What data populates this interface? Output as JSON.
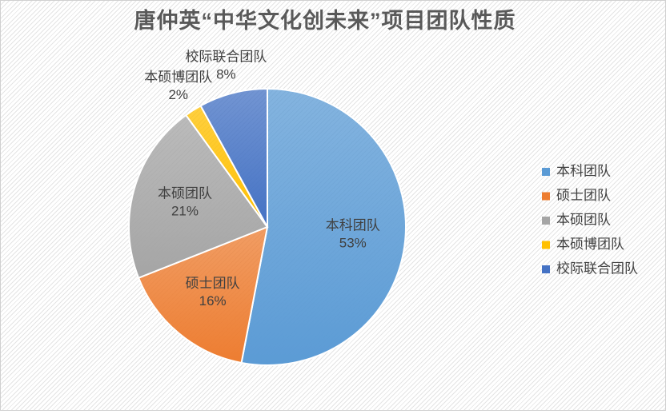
{
  "chart_data": {
    "type": "pie",
    "title": "唐仲英“中华文化创未来”项目团队性质",
    "categories": [
      "本科团队",
      "硕士团队",
      "本硕团队",
      "本硕博团队",
      "校际联合团队"
    ],
    "values": [
      53,
      16,
      21,
      2,
      8
    ],
    "value_labels": [
      "53%",
      "16%",
      "21%",
      "2%",
      "8%"
    ],
    "colors": [
      "#5b9bd5",
      "#ed7d31",
      "#a5a5a5",
      "#ffc000",
      "#4472c4"
    ],
    "legend": "right"
  }
}
